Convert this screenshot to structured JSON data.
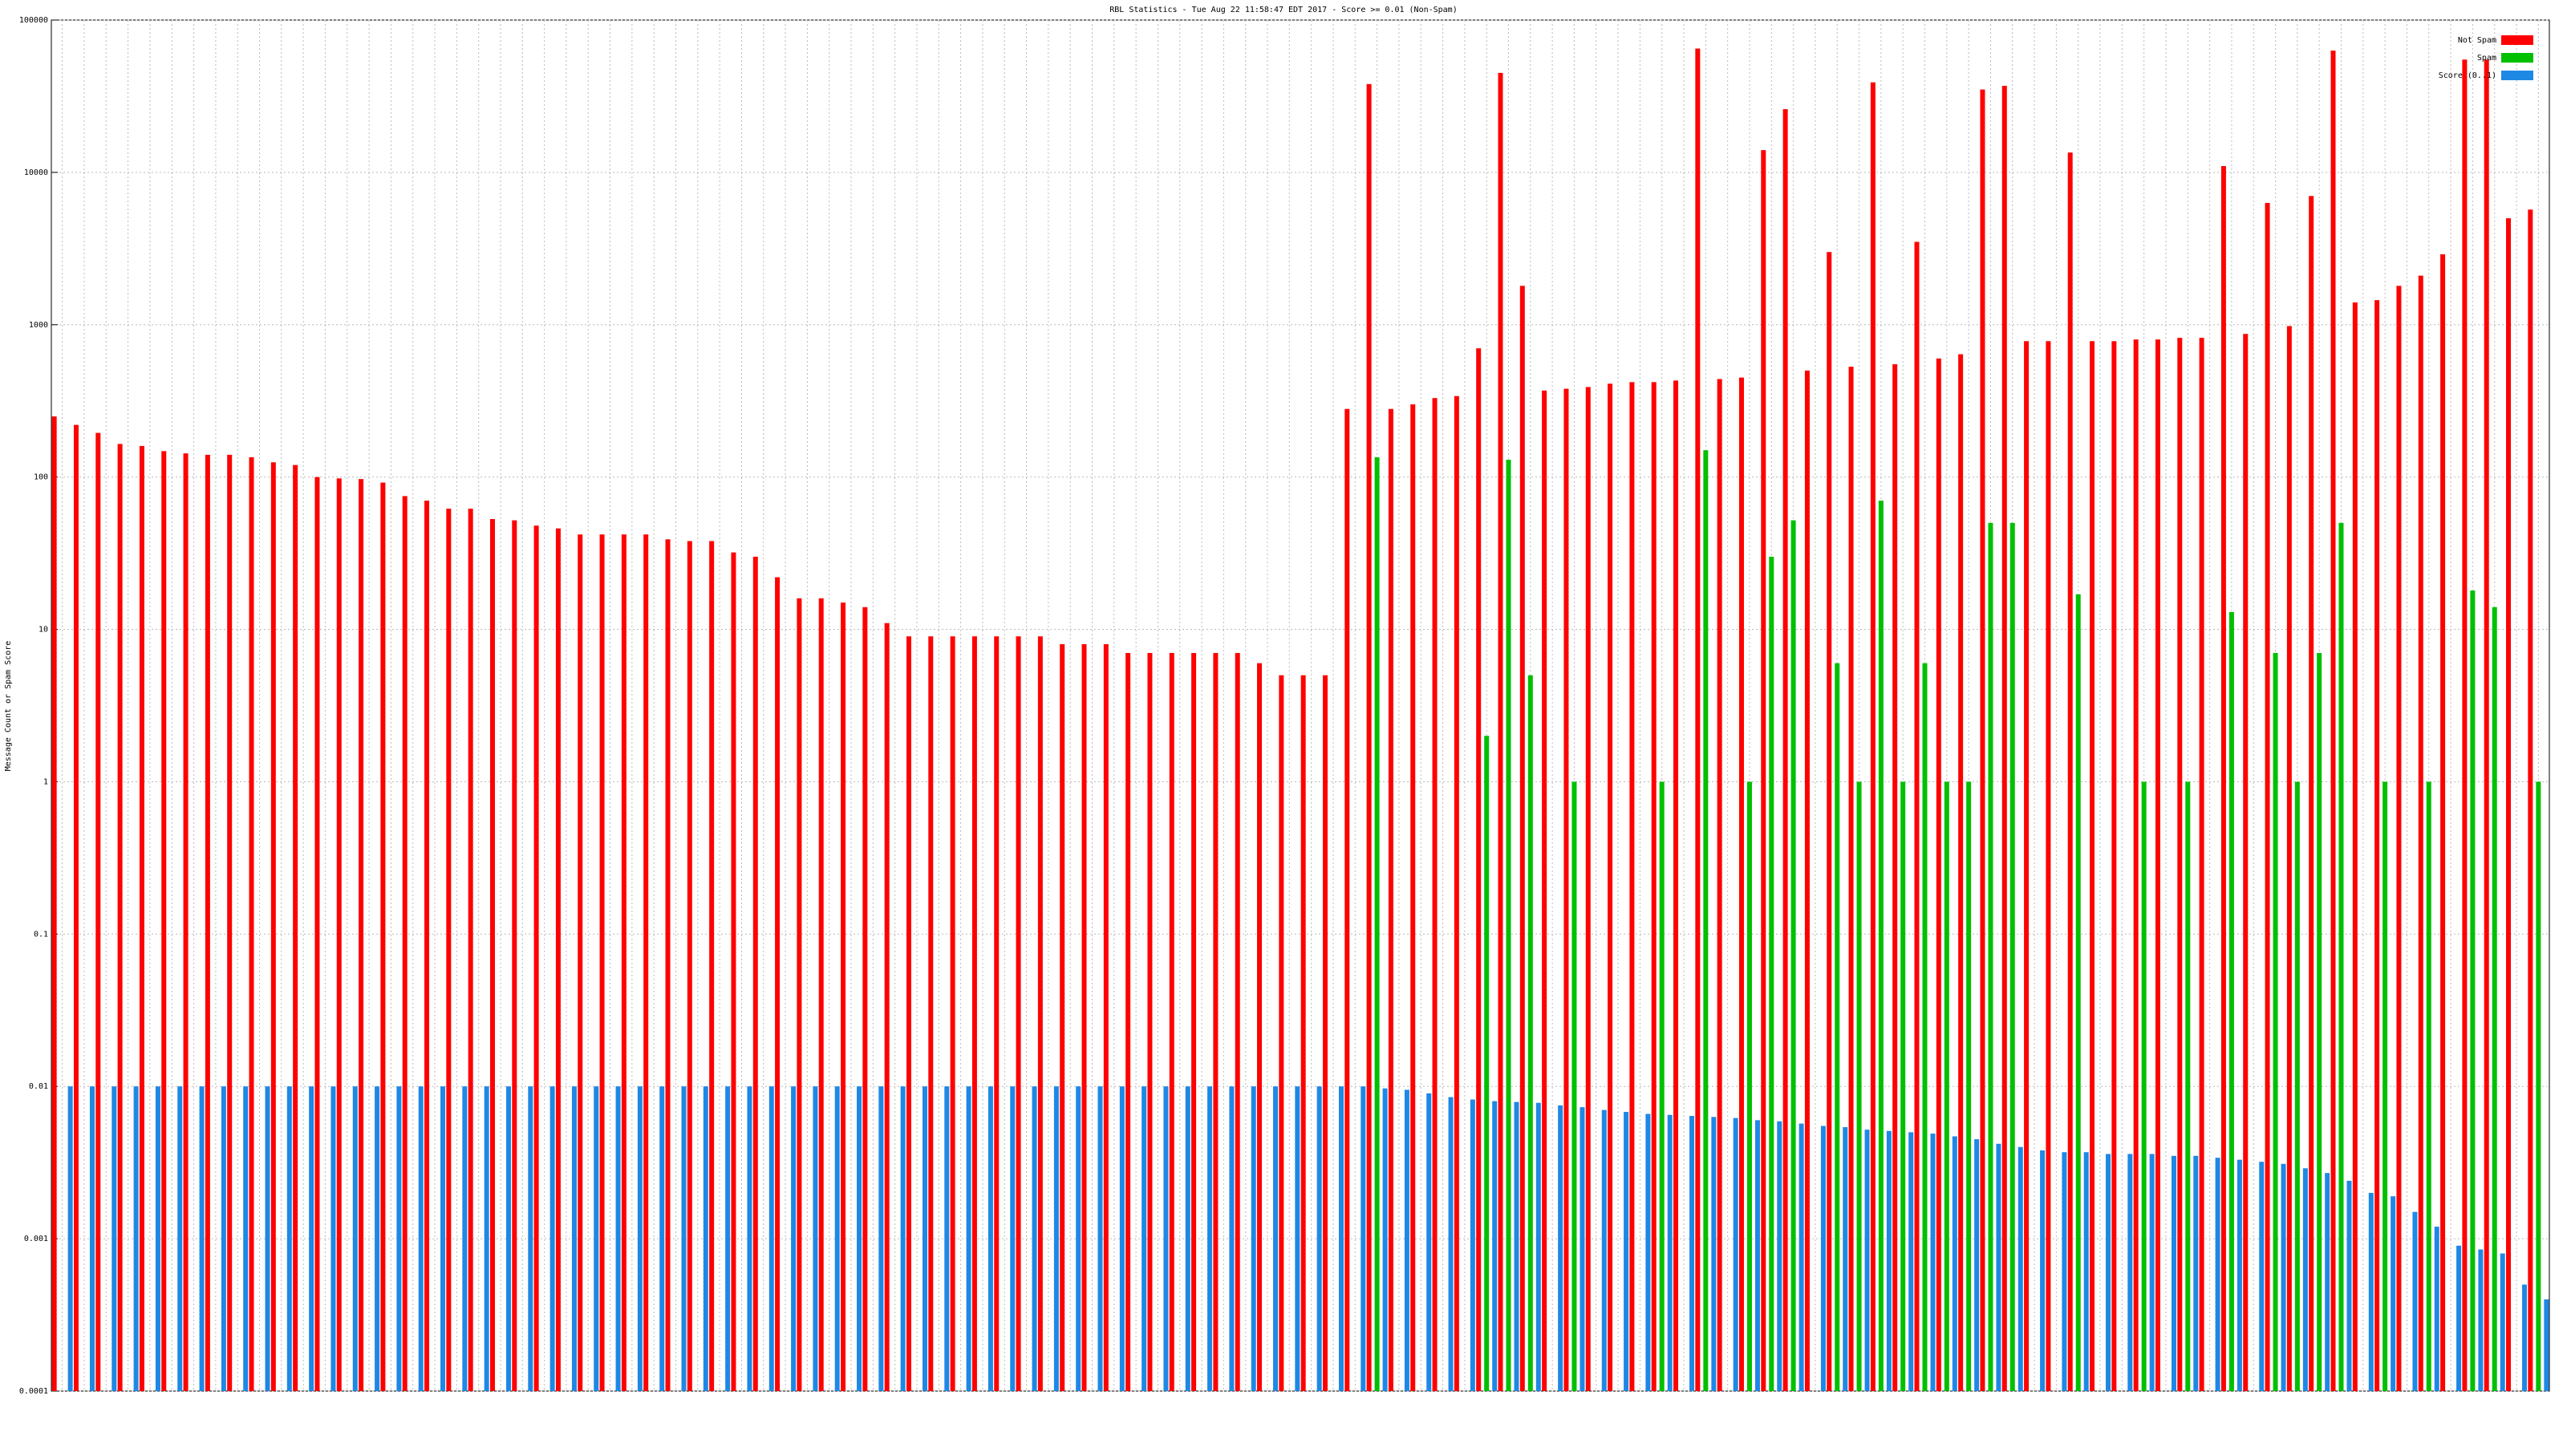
{
  "chart_data": {
    "type": "bar",
    "title": "RBL Statistics - Tue Aug 22 11:58:47 EDT 2017 - Score >= 0.01 (Non-Spam)",
    "y_label": "Message Count or Spam Score",
    "log_scale": true,
    "grid": true,
    "legend": "top-right",
    "ylim": [
      0.0001,
      100000
    ],
    "yticks": [
      0.0001,
      0.001,
      0.01,
      0.1,
      1,
      10,
      100,
      1000,
      10000,
      100000
    ],
    "categories": [
      null,
      null,
      null,
      null,
      null,
      null,
      null,
      null,
      null,
      null,
      null,
      null,
      null,
      null,
      null,
      null,
      null,
      null,
      null,
      null,
      null,
      null,
      null,
      null,
      null,
      null,
      null,
      null,
      null,
      null,
      null,
      null,
      null,
      null,
      null,
      null,
      null,
      null,
      null,
      null,
      null,
      null,
      null,
      null,
      null,
      null,
      null,
      null,
      null,
      null,
      null,
      null,
      null,
      null,
      null,
      null,
      null,
      null,
      null,
      null,
      null,
      null,
      null,
      null,
      null,
      null,
      null,
      null,
      null,
      null,
      null,
      null,
      null,
      null,
      null,
      null,
      null,
      null,
      null,
      null,
      null,
      null,
      null,
      null,
      null,
      null,
      null,
      null,
      null,
      null,
      null,
      null,
      null,
      null,
      null,
      null,
      null,
      null,
      null,
      null,
      null,
      null,
      null,
      null,
      null,
      null,
      null,
      null,
      null,
      null,
      null,
      null,
      null,
      null
    ],
    "series": [
      {
        "name": "Not Spam",
        "color": "#ff0000",
        "values": [
          250,
          220,
          195,
          165,
          160,
          148,
          143,
          140,
          140,
          135,
          125,
          120,
          100,
          98,
          97,
          92,
          75,
          70,
          62,
          62,
          53,
          52,
          48,
          46,
          42,
          42,
          42,
          42,
          39,
          38,
          38,
          32,
          30,
          22,
          16,
          16,
          15,
          14,
          11,
          9,
          9,
          9,
          9,
          9,
          9,
          9,
          8,
          8,
          8,
          7,
          7,
          7,
          7,
          7,
          7,
          6,
          5,
          5,
          5,
          280,
          38000,
          280,
          300,
          330,
          340,
          700,
          45000,
          1800,
          370,
          380,
          390,
          410,
          420,
          420,
          430,
          65000,
          440,
          450,
          14000,
          26000,
          500,
          3000,
          530,
          39000,
          550,
          3500,
          600,
          640,
          35000,
          37000,
          780,
          780,
          13500,
          780,
          780,
          800,
          800,
          820,
          820,
          11000,
          870,
          6300,
          980,
          7000,
          63000,
          1400,
          1450,
          1800,
          2100,
          2900,
          55000,
          55000,
          5000,
          5700
        ]
      },
      {
        "name": "Spam",
        "color": "#00c000",
        "values": [
          null,
          null,
          null,
          null,
          null,
          null,
          null,
          null,
          null,
          null,
          null,
          null,
          null,
          null,
          null,
          null,
          null,
          null,
          null,
          null,
          null,
          null,
          null,
          null,
          null,
          null,
          null,
          null,
          null,
          null,
          null,
          null,
          null,
          null,
          null,
          null,
          null,
          null,
          null,
          null,
          null,
          null,
          null,
          null,
          null,
          null,
          null,
          null,
          null,
          null,
          null,
          null,
          null,
          null,
          null,
          null,
          null,
          null,
          null,
          null,
          135,
          null,
          null,
          null,
          null,
          2,
          130,
          5,
          null,
          1,
          null,
          null,
          null,
          1,
          null,
          150,
          null,
          1,
          30,
          52,
          null,
          6,
          1,
          70,
          1,
          6,
          1,
          1,
          50,
          50,
          null,
          null,
          17,
          null,
          null,
          1,
          null,
          1,
          null,
          13,
          null,
          7,
          1,
          7,
          50,
          null,
          1,
          null,
          1,
          null,
          18,
          14,
          null,
          1
        ]
      },
      {
        "name": "Score (0..1)",
        "color": "#1e88e5",
        "values": [
          0.01,
          0.01,
          0.01,
          0.01,
          0.01,
          0.01,
          0.01,
          0.01,
          0.01,
          0.01,
          0.01,
          0.01,
          0.01,
          0.01,
          0.01,
          0.01,
          0.01,
          0.01,
          0.01,
          0.01,
          0.01,
          0.01,
          0.01,
          0.01,
          0.01,
          0.01,
          0.01,
          0.01,
          0.01,
          0.01,
          0.01,
          0.01,
          0.01,
          0.01,
          0.01,
          0.01,
          0.01,
          0.01,
          0.01,
          0.01,
          0.01,
          0.01,
          0.01,
          0.01,
          0.01,
          0.01,
          0.01,
          0.01,
          0.01,
          0.01,
          0.01,
          0.01,
          0.01,
          0.01,
          0.01,
          0.01,
          0.01,
          0.01,
          0.01,
          0.01,
          0.0097,
          0.0095,
          0.009,
          0.0085,
          0.0082,
          0.008,
          0.0079,
          0.0078,
          0.0075,
          0.0073,
          0.007,
          0.0068,
          0.0066,
          0.0065,
          0.0064,
          0.0063,
          0.0062,
          0.006,
          0.0059,
          0.0057,
          0.0055,
          0.0054,
          0.0052,
          0.0051,
          0.005,
          0.0049,
          0.0047,
          0.0045,
          0.0042,
          0.004,
          0.0038,
          0.0037,
          0.0037,
          0.0036,
          0.0036,
          0.0036,
          0.0035,
          0.0035,
          0.0034,
          0.0033,
          0.0032,
          0.0031,
          0.0029,
          0.0027,
          0.0024,
          0.002,
          0.0019,
          0.0015,
          0.0012,
          0.0009,
          0.00085,
          0.0008,
          0.0005,
          0.0004
        ]
      }
    ]
  }
}
